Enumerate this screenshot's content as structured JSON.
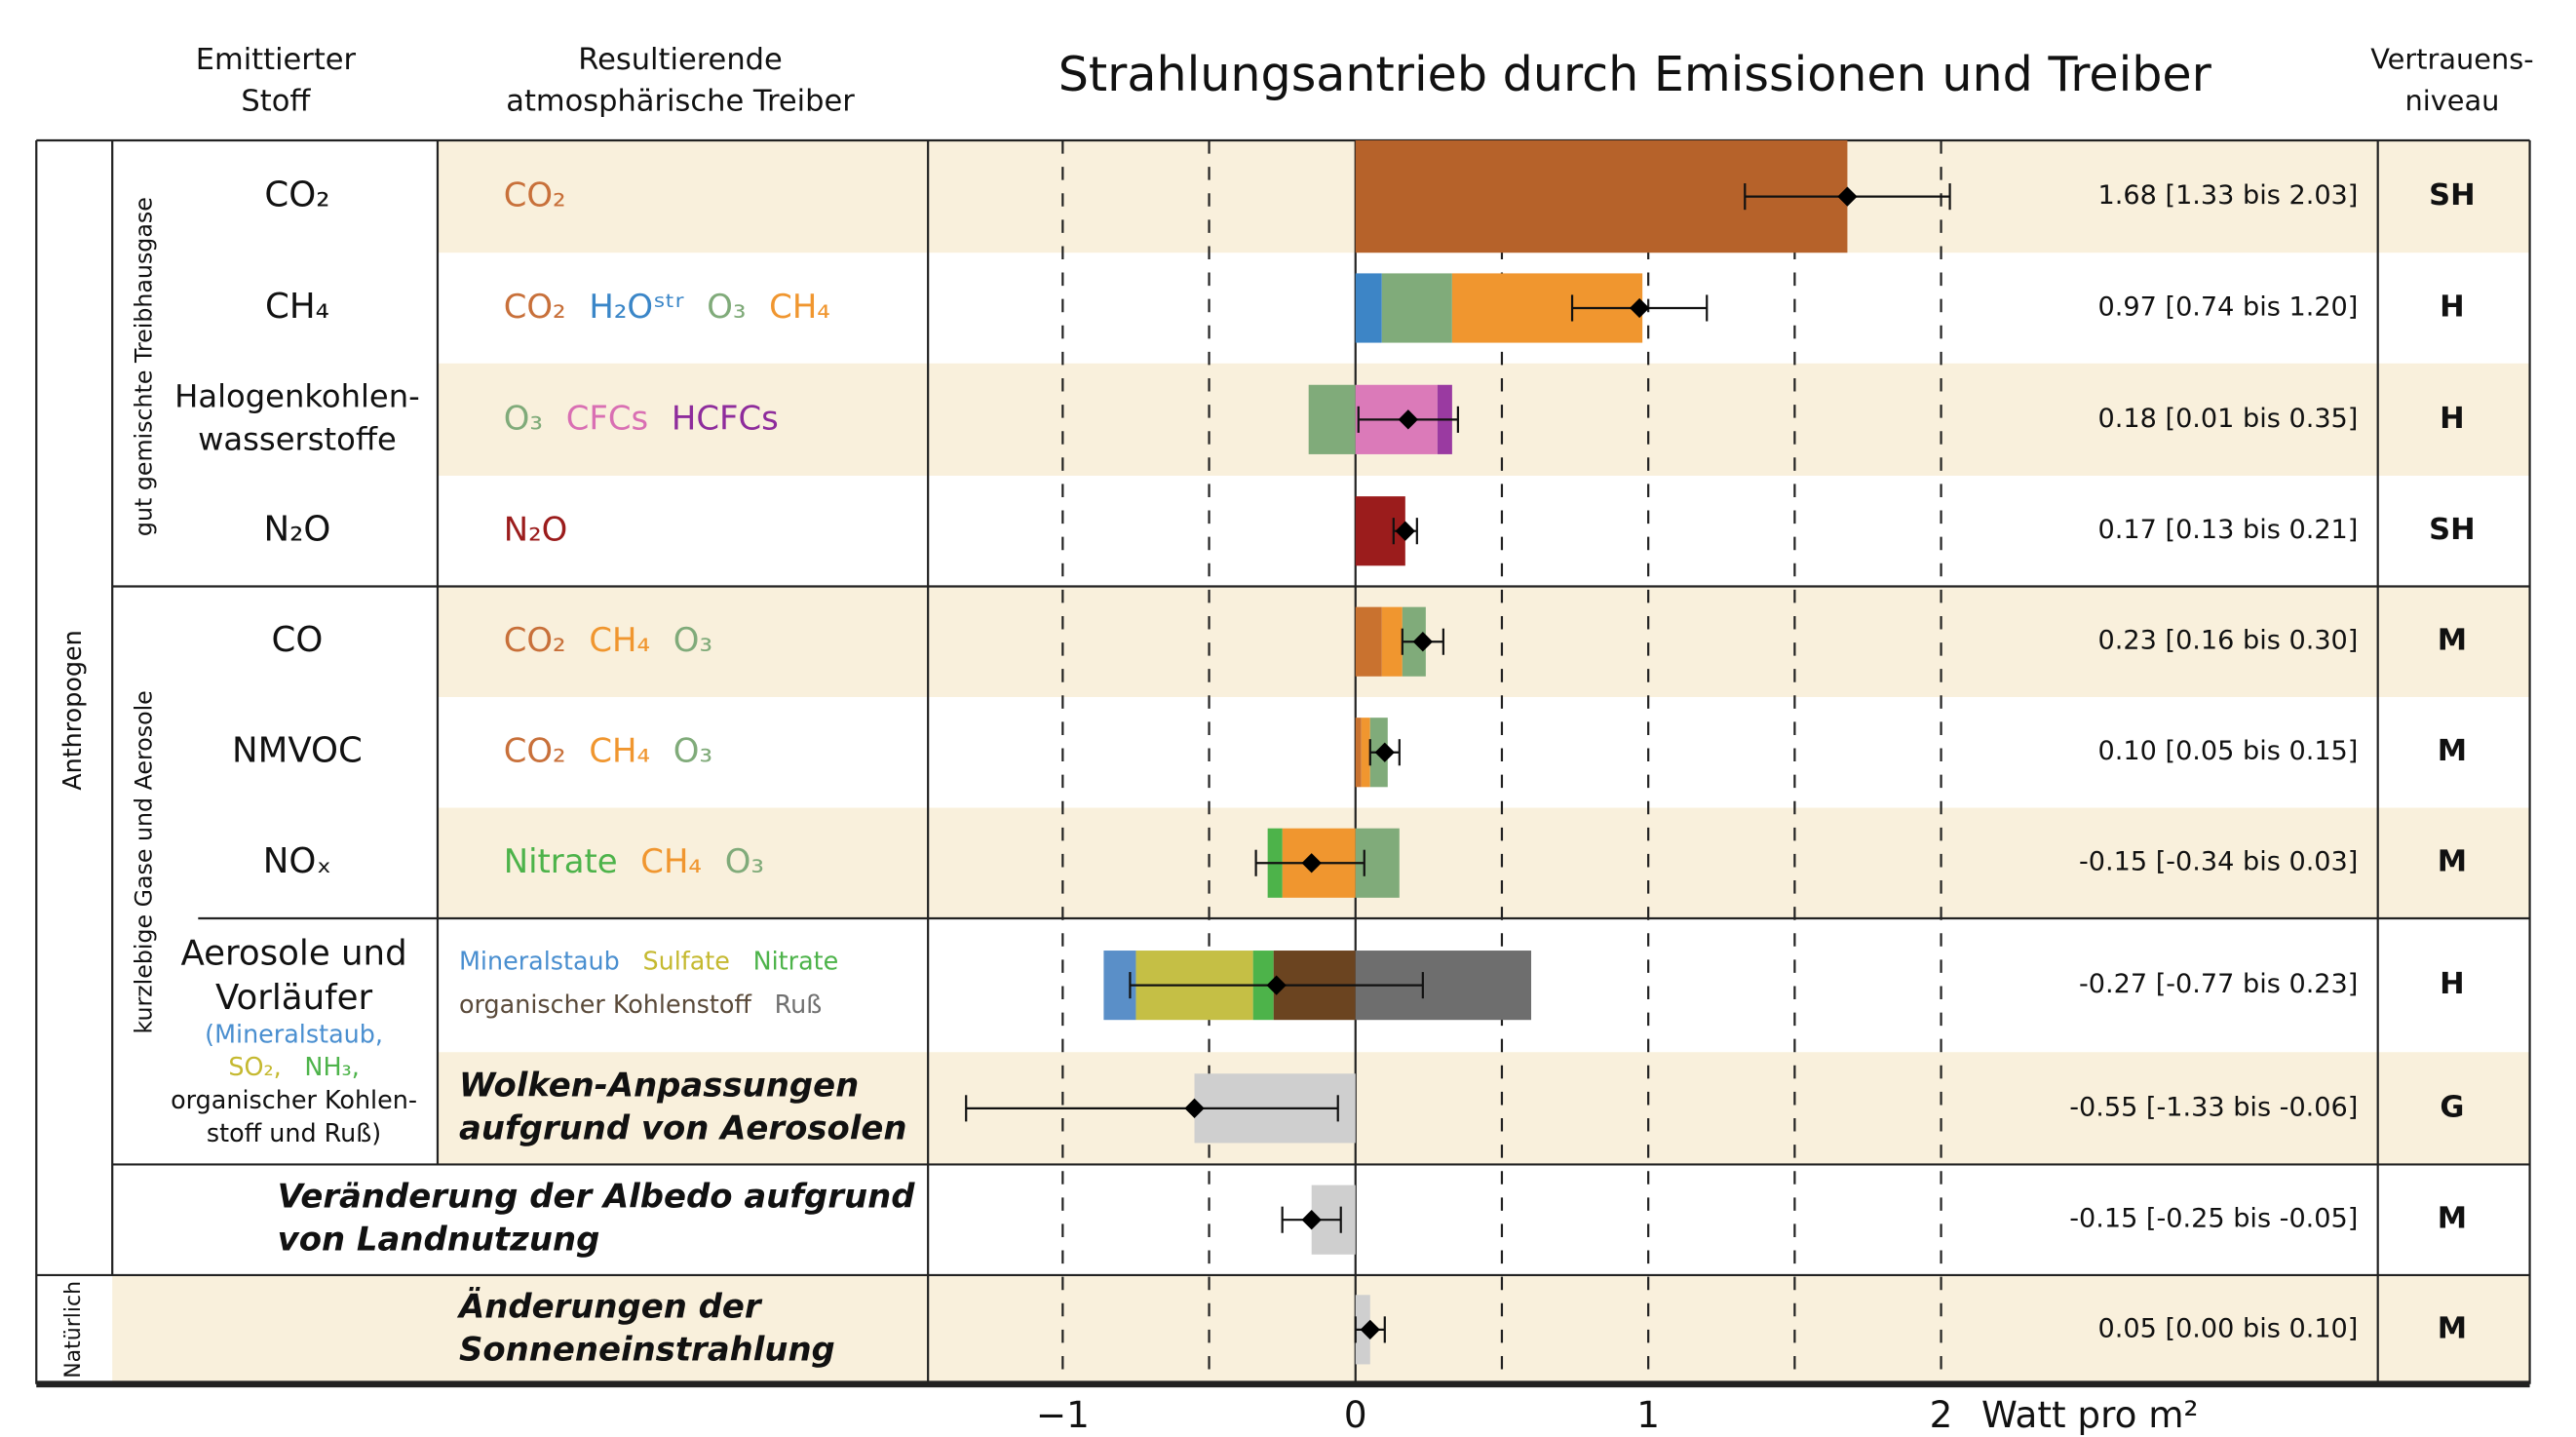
{
  "chart_data": {
    "type": "stacked-bar-errorbar",
    "title": "Strahlungsantrieb durch Emissionen und Treiber",
    "header_emitted": [
      "Emittierter",
      "Stoff"
    ],
    "header_drivers": [
      "Resultierende",
      "atmosphärische Treiber"
    ],
    "header_confidence": [
      "Vertrauens-",
      "niveau"
    ],
    "group_labels": {
      "anthropogenic": "Anthropogen",
      "well_mixed": "gut gemischte Treibhausgase",
      "short_lived": "kurzlebige Gase und Aerosole",
      "natural": "Natürlich"
    },
    "xlabel": "Watt pro m²",
    "xlim": [
      -1.46,
      2.11
    ],
    "xticks": [
      {
        "value": -1,
        "label": "−1"
      },
      0,
      1,
      2
    ],
    "xminorticks": [
      -0.5,
      0.5,
      1.5
    ],
    "grid": true,
    "rows": [
      {
        "emitted": [
          "CO₂"
        ],
        "drivers": [
          [
            {
              "text": "CO₂",
              "color": "#c8703a"
            }
          ]
        ],
        "segments": [
          {
            "color": "#b6622a",
            "value": 1.68
          }
        ],
        "value": 1.68,
        "low": 1.33,
        "high": 2.03,
        "value_label": "1.68 [1.33 bis 2.03]",
        "label_color": "#e8383d",
        "confidence": "SH"
      },
      {
        "emitted": [
          "CH₄"
        ],
        "drivers": [
          [
            {
              "text": "CO₂",
              "color": "#c8703a"
            },
            {
              "text": "H₂Oˢᵗʳ",
              "color": "#3a86c8"
            },
            {
              "text": "O₃",
              "color": "#80ab7a"
            },
            {
              "text": "CH₄",
              "color": "#f0962f"
            }
          ]
        ],
        "segments": [
          {
            "color": "#3d85c6",
            "value": 0.09
          },
          {
            "color": "#80ab7a",
            "value": 0.24
          },
          {
            "color": "#f0962f",
            "value": 0.65
          }
        ],
        "value": 0.97,
        "low": 0.74,
        "high": 1.2,
        "value_label": "0.97 [0.74 bis 1.20]",
        "label_color": "#e8383d",
        "confidence": "H"
      },
      {
        "emitted": [
          "Halogenkohlen-",
          "wasserstoffe"
        ],
        "drivers": [
          [
            {
              "text": "O₃",
              "color": "#80ab7a"
            },
            {
              "text": "CFCs",
              "color": "#d96fb3"
            },
            {
              "text": "HCFCs",
              "color": "#8e2c9c"
            }
          ]
        ],
        "segments": [
          {
            "color": "#80ab7a",
            "value": -0.16
          },
          {
            "color": "#db7ab9",
            "value": 0.28
          },
          {
            "color": "#9a3aa1",
            "value": 0.05
          }
        ],
        "value": 0.18,
        "low": 0.01,
        "high": 0.35,
        "value_label": "0.18 [0.01 bis 0.35]",
        "label_color": "#e8383d",
        "confidence": "H"
      },
      {
        "emitted": [
          "N₂O"
        ],
        "drivers": [
          [
            {
              "text": "N₂O",
              "color": "#9b1c1c"
            }
          ]
        ],
        "segments": [
          {
            "color": "#9b1c1c",
            "value": 0.17
          }
        ],
        "value": 0.17,
        "low": 0.13,
        "high": 0.21,
        "value_label": "0.17 [0.13 bis 0.21]",
        "label_color": "#e8383d",
        "confidence": "SH"
      },
      {
        "emitted": [
          "CO"
        ],
        "drivers": [
          [
            {
              "text": "CO₂",
              "color": "#c8703a"
            },
            {
              "text": "CH₄",
              "color": "#f0962f"
            },
            {
              "text": "O₃",
              "color": "#80ab7a"
            }
          ]
        ],
        "segments": [
          {
            "color": "#c9722f",
            "value": 0.09
          },
          {
            "color": "#f0962f",
            "value": 0.07
          },
          {
            "color": "#80ab7a",
            "value": 0.08
          }
        ],
        "value": 0.23,
        "low": 0.16,
        "high": 0.3,
        "value_label": "0.23 [0.16 bis 0.30]",
        "label_color": "#e8383d",
        "confidence": "M"
      },
      {
        "emitted": [
          "NMVOC"
        ],
        "drivers": [
          [
            {
              "text": "CO₂",
              "color": "#c8703a"
            },
            {
              "text": "CH₄",
              "color": "#f0962f"
            },
            {
              "text": "O₃",
              "color": "#80ab7a"
            }
          ]
        ],
        "segments": [
          {
            "color": "#c9722f",
            "value": 0.02
          },
          {
            "color": "#f0962f",
            "value": 0.03
          },
          {
            "color": "#80ab7a",
            "value": 0.06
          }
        ],
        "value": 0.1,
        "low": 0.05,
        "high": 0.15,
        "value_label": "0.10 [0.05 bis 0.15]",
        "label_color": "#e8383d",
        "confidence": "M"
      },
      {
        "emitted": [
          "NOₓ"
        ],
        "drivers": [
          [
            {
              "text": "Nitrate",
              "color": "#4db34a"
            },
            {
              "text": "CH₄",
              "color": "#f0962f"
            },
            {
              "text": "O₃",
              "color": "#80ab7a"
            }
          ]
        ],
        "segments": [
          {
            "color": "#f0962f",
            "value": -0.25
          },
          {
            "color": "#4db34a",
            "value": -0.05
          },
          {
            "color": "#80ab7a",
            "value": 0.15
          }
        ],
        "value": -0.15,
        "low": -0.34,
        "high": 0.03,
        "value_label": "-0.15 [-0.34 bis 0.03]",
        "label_color": "#3f4fa0",
        "confidence": "M"
      },
      {
        "emitted": [
          "Aerosole und",
          "Vorläufer",
          [
            {
              "text": "(Mineralstaub,",
              "color": "#4a8fd0"
            }
          ],
          [
            {
              "text": "SO₂,",
              "color": "#c5b930"
            },
            {
              "text": "NH₃,",
              "color": "#4db34a"
            }
          ],
          "organischer Kohlen-",
          "stoff und Ruß)"
        ],
        "drivers": [
          [
            {
              "text": "Mineralstaub",
              "color": "#4a8fd0"
            },
            {
              "text": "Sulfate",
              "color": "#c5b930"
            },
            {
              "text": "Nitrate",
              "color": "#4db34a"
            }
          ],
          [
            {
              "text": "organischer Kohlenstoff",
              "color": "#5a4a3a"
            },
            {
              "text": "Ruß",
              "color": "#707070"
            }
          ]
        ],
        "segments": [
          {
            "color": "#6b4420",
            "value": -0.28
          },
          {
            "color": "#4db34a",
            "value": -0.07
          },
          {
            "color": "#c5bf45",
            "value": -0.4
          },
          {
            "color": "#5a8fc8",
            "value": -0.11
          },
          {
            "color": "#6e6e6e",
            "value": 0.6
          }
        ],
        "value": -0.27,
        "low": -0.77,
        "high": 0.23,
        "value_label": "-0.27 [-0.77 bis 0.23]",
        "label_color": "#3f4fa0",
        "confidence": "H"
      },
      {
        "drivers": [
          "Wolken-Anpassungen",
          "aufgrund von Aerosolen"
        ],
        "style": "italic",
        "segments": [
          {
            "color": "#cfcfcf",
            "value": -0.55
          }
        ],
        "value": -0.55,
        "low": -1.33,
        "high": -0.06,
        "value_label": "-0.55 [-1.33 bis -0.06]",
        "label_color": "#3f4fa0",
        "confidence": "G"
      },
      {
        "drivers": [
          "Veränderung der Albedo aufgrund",
          "von Landnutzung"
        ],
        "style": "italic",
        "segments": [
          {
            "color": "#cfcfcf",
            "value": -0.15
          }
        ],
        "value": -0.15,
        "low": -0.25,
        "high": -0.05,
        "value_label": "-0.15 [-0.25 bis -0.05]",
        "label_color": "#3f4fa0",
        "confidence": "M"
      },
      {
        "drivers": [
          "Änderungen der",
          "Sonneneinstrahlung"
        ],
        "style": "italic",
        "segments": [
          {
            "color": "#cfcfcf",
            "value": 0.05
          }
        ],
        "value": 0.05,
        "low": 0.0,
        "high": 0.1,
        "value_label": "0.05 [0.00 bis 0.10]",
        "label_color": "#e8383d",
        "confidence": "M"
      }
    ]
  }
}
